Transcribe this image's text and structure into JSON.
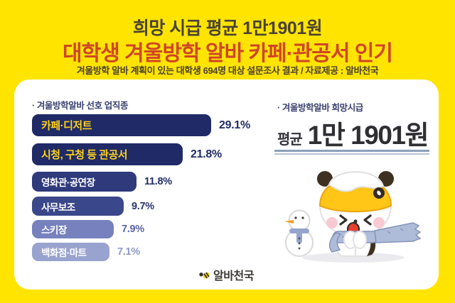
{
  "page": {
    "background_color": "#ffe400",
    "card_color": "#ffffff",
    "header": {
      "line1": "희망 시급 평균 1만1901원",
      "line2": "대학생 겨울방학 알바 카페·관공서 인기",
      "line3": "겨울방학 알바 계획이 있는 대학생 694명 대상 설문조사 결과 / 자료제공 : 알바천국",
      "line1_color": "#4a4233",
      "line2_color": "#cf4527"
    },
    "wage": {
      "section_title": "· 겨울방학알바 희망시급",
      "prefix": "평균",
      "amount": "1만 1901원"
    },
    "footer": {
      "logo_text": "알바천국",
      "logo_icon": "bee-icon"
    },
    "illustrations": {
      "mascot": "winter-panda-mascot",
      "snowman": "snowman"
    }
  },
  "chart_data": {
    "type": "bar",
    "orientation": "horizontal",
    "title": "· 겨울방학알바 선호 업직종",
    "categories": [
      "카페·디저트",
      "시청, 구청 등 관공서",
      "영화관·공연장",
      "사무보조",
      "스키장",
      "백화점·마트"
    ],
    "values": [
      29.1,
      21.8,
      11.8,
      9.7,
      7.9,
      7.1
    ],
    "unit": "%",
    "value_labels": [
      "29.1%",
      "21.8%",
      "11.8%",
      "9.7%",
      "7.9%",
      "7.1%"
    ],
    "bar_colors": [
      "#1f2a66",
      "#1f2a66",
      "#2e3a7c",
      "#3a478b",
      "#7681bd",
      "#99a3cf"
    ],
    "bar_label_colors": [
      "#ffd21a",
      "#ffd21a",
      "#ffffff",
      "#ffffff",
      "#ffffff",
      "#ffffff"
    ],
    "value_label_colors": [
      "#222c67",
      "#222c67",
      "#222c67",
      "#2a346f",
      "#5a66a8",
      "#8e98c7"
    ],
    "axis": "none",
    "legend": "none",
    "grid": false
  }
}
